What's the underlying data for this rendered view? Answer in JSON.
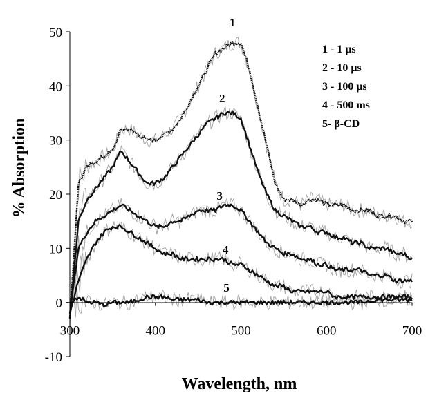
{
  "chart_data": {
    "type": "line",
    "title": "",
    "xlabel": "Wavelength, nm",
    "ylabel": "% Absorption",
    "xlim": [
      300,
      700
    ],
    "ylim": [
      -10,
      50
    ],
    "x_ticks": [
      "300",
      "400",
      "500",
      "600",
      "700"
    ],
    "y_ticks": [
      "50",
      "40",
      "30",
      "20",
      "10",
      "0",
      "-10"
    ],
    "grid": false,
    "legend_position": "top-right",
    "legend": [
      "1 - 1 μs",
      "2 - 10 μs",
      "3 - 100 μs",
      "4 - 500 ms",
      "5-  β-CD"
    ],
    "x": [
      300,
      310,
      320,
      330,
      340,
      350,
      360,
      370,
      380,
      390,
      400,
      410,
      420,
      430,
      440,
      450,
      460,
      470,
      480,
      490,
      500,
      510,
      520,
      530,
      540,
      550,
      560,
      570,
      580,
      590,
      600,
      610,
      620,
      630,
      640,
      650,
      660,
      670,
      680,
      690,
      700
    ],
    "series": [
      {
        "name": "1",
        "values": [
          -3,
          22,
          25,
          26,
          27,
          28,
          32,
          32,
          31,
          30,
          30,
          31,
          32,
          34,
          37,
          40,
          43,
          46,
          47,
          48,
          48,
          43,
          36,
          29,
          22,
          19,
          19,
          18,
          19,
          19,
          18,
          18,
          18,
          17,
          17,
          17,
          16,
          16,
          16,
          15,
          15
        ]
      },
      {
        "name": "2",
        "values": [
          -3,
          15,
          19,
          21,
          23,
          25,
          28,
          26,
          24,
          22,
          22,
          23,
          25,
          27,
          29,
          31,
          33,
          34,
          35,
          35,
          34,
          29,
          24,
          20,
          17,
          16,
          15,
          14,
          14,
          13,
          13,
          12,
          12,
          11,
          11,
          10,
          10,
          10,
          9,
          9,
          8
        ]
      },
      {
        "name": "3",
        "values": [
          -2,
          10,
          13,
          15,
          16,
          17,
          18,
          17,
          16,
          15,
          14,
          14,
          15,
          15,
          16,
          17,
          17,
          17,
          18,
          18,
          17,
          15,
          13,
          11,
          10,
          9,
          9,
          8,
          8,
          7,
          7,
          6,
          6,
          6,
          6,
          5,
          5,
          5,
          4,
          4,
          4
        ]
      },
      {
        "name": "4",
        "values": [
          -2,
          4,
          8,
          11,
          13,
          14,
          14,
          13,
          12,
          11,
          10,
          9,
          9,
          8,
          8,
          8,
          8,
          8,
          8,
          7,
          7,
          6,
          5,
          4,
          3,
          3,
          2,
          2,
          2,
          2,
          2,
          1,
          1,
          1,
          1,
          1,
          1,
          1,
          1,
          1,
          1
        ]
      },
      {
        "name": "5",
        "values": [
          0,
          1,
          0,
          0,
          -0.5,
          0,
          0,
          0,
          0.5,
          1,
          1,
          1,
          0.5,
          0.5,
          0.5,
          0.5,
          0,
          0,
          0,
          0,
          0,
          0,
          0,
          0,
          0,
          0,
          0,
          0,
          0,
          0,
          0,
          0,
          0,
          0,
          0,
          0.3,
          0.5,
          0.5,
          0.5,
          0.5,
          0.5
        ]
      }
    ],
    "curve_labels": [
      {
        "text": "1",
        "x": 490,
        "y": 51
      },
      {
        "text": "2",
        "x": 478,
        "y": 37
      },
      {
        "text": "3",
        "x": 475,
        "y": 19
      },
      {
        "text": "4",
        "x": 482,
        "y": 9
      },
      {
        "text": "5",
        "x": 483,
        "y": 2
      }
    ]
  }
}
